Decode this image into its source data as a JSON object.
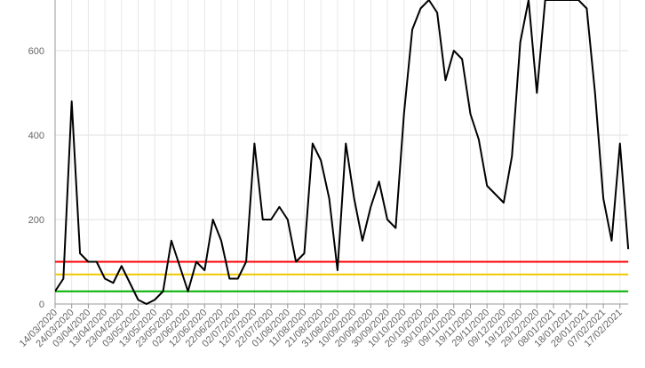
{
  "chart_data": {
    "type": "line",
    "categories": [
      "14/03/2020",
      null,
      "24/03/2020",
      null,
      "03/04/2020",
      null,
      "13/04/2020",
      null,
      "23/04/2020",
      null,
      "03/05/2020",
      null,
      "13/05/2020",
      null,
      "23/05/2020",
      null,
      "02/06/2020",
      null,
      "12/06/2020",
      null,
      "22/06/2020",
      null,
      "02/07/2020",
      null,
      "12/07/2020",
      null,
      "22/07/2020",
      null,
      "01/08/2020",
      null,
      "11/08/2020",
      null,
      "21/08/2020",
      null,
      "31/08/2020",
      null,
      "10/09/2020",
      null,
      "20/09/2020",
      null,
      "30/09/2020",
      null,
      "10/10/2020",
      null,
      "20/10/2020",
      null,
      "30/10/2020",
      null,
      "09/11/2020",
      null,
      "19/11/2020",
      null,
      "29/11/2020",
      null,
      "09/12/2020",
      null,
      "19/12/2020",
      null,
      "29/12/2020",
      null,
      "08/01/2021",
      null,
      "18/01/2021",
      null,
      "28/01/2021",
      null,
      "07/02/2021",
      null,
      "17/02/2021",
      null
    ],
    "series": [
      {
        "color": "#000000",
        "values": [
          30,
          60,
          480,
          120,
          100,
          100,
          60,
          50,
          90,
          50,
          10,
          0,
          10,
          30,
          150,
          90,
          30,
          100,
          80,
          200,
          150,
          60,
          60,
          100,
          380,
          200,
          200,
          230,
          200,
          100,
          120,
          380,
          340,
          250,
          80,
          380,
          250,
          150,
          230,
          290,
          200,
          180,
          450,
          650,
          700,
          720,
          690,
          530,
          600,
          580,
          450,
          390,
          280,
          260,
          240,
          350,
          620,
          720,
          500,
          720,
          720,
          720,
          720,
          720,
          700,
          500,
          250,
          150,
          380,
          130
        ]
      }
    ],
    "thresholds": [
      {
        "value": 100,
        "color": "#ff0000"
      },
      {
        "value": 70,
        "color": "#f0c800"
      },
      {
        "value": 30,
        "color": "#00b000"
      }
    ],
    "ylim": [
      0,
      720
    ],
    "yticks": [
      0,
      200,
      400,
      600
    ],
    "grid": true
  }
}
